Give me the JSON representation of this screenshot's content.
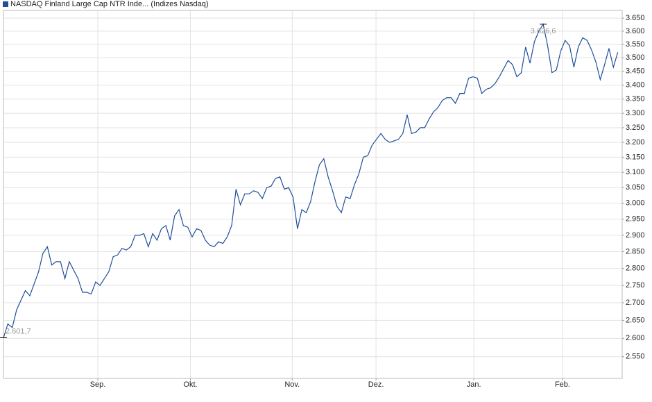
{
  "chart_data": {
    "type": "line",
    "log_scale": true,
    "grid": true,
    "series": [
      {
        "name": "NASDAQ Finland Large Cap NTR Inde... (Indizes Nasdaq)",
        "color": "#1f4e9a",
        "x": [
          0,
          1,
          2,
          3,
          5,
          6,
          8,
          9,
          10,
          11,
          12,
          13,
          14,
          15,
          17,
          18,
          19,
          20,
          21,
          22,
          23,
          24,
          25,
          26,
          27,
          28,
          29,
          30,
          31,
          32,
          33,
          34,
          35,
          36,
          37,
          38,
          39,
          40,
          41,
          42,
          43,
          44,
          45,
          46,
          47,
          48,
          49,
          50,
          51,
          52,
          53,
          54,
          55,
          56,
          57,
          58,
          59,
          60,
          61,
          62,
          63,
          64,
          65,
          66,
          67,
          68,
          69,
          70,
          71,
          72,
          73,
          74,
          75,
          76,
          77,
          78,
          79,
          80,
          81,
          82,
          83,
          84,
          85,
          86,
          87,
          88,
          89,
          90,
          91,
          92,
          93,
          94,
          95,
          96,
          97,
          98,
          99,
          100,
          101,
          102,
          103,
          104,
          105,
          106,
          107,
          108,
          109,
          110,
          111,
          112,
          113,
          114,
          115,
          116,
          117,
          118,
          119,
          120,
          121,
          122,
          123,
          124,
          125,
          126,
          127,
          128,
          129,
          130,
          131,
          132,
          133,
          134,
          135,
          136,
          137,
          138,
          139,
          140
        ],
        "values": [
          2601.7,
          2640,
          2630,
          2680,
          2735,
          2720,
          2790,
          2845,
          2865,
          2810,
          2820,
          2820,
          2770,
          2820,
          2770,
          2730,
          2730,
          2725,
          2760,
          2750,
          2770,
          2790,
          2835,
          2840,
          2860,
          2855,
          2865,
          2900,
          2900,
          2905,
          2865,
          2905,
          2885,
          2920,
          2930,
          2885,
          2960,
          2980,
          2930,
          2925,
          2895,
          2920,
          2915,
          2885,
          2870,
          2865,
          2880,
          2875,
          2895,
          2930,
          3045,
          2995,
          3030,
          3030,
          3040,
          3035,
          3015,
          3050,
          3055,
          3080,
          3085,
          3045,
          3050,
          3020,
          2920,
          2980,
          2970,
          3005,
          3070,
          3125,
          3145,
          3085,
          3040,
          2990,
          2970,
          3020,
          3015,
          3060,
          3095,
          3150,
          3155,
          3190,
          3210,
          3230,
          3210,
          3200,
          3205,
          3210,
          3230,
          3295,
          3230,
          3235,
          3250,
          3250,
          3280,
          3305,
          3320,
          3345,
          3355,
          3355,
          3335,
          3370,
          3370,
          3425,
          3430,
          3425,
          3370,
          3385,
          3390,
          3405,
          3430,
          3460,
          3490,
          3475,
          3430,
          3445,
          3540,
          3480,
          3560,
          3600,
          3626.6,
          3545,
          3445,
          3455,
          3525,
          3565,
          3545,
          3465,
          3540,
          3575,
          3565,
          3530,
          3485,
          3420,
          3475,
          3535,
          3465,
          3520
        ]
      }
    ],
    "annotations": [
      {
        "x": 123,
        "value": 3626.6,
        "label": "3.626,6"
      },
      {
        "x": 0,
        "value": 2601.7,
        "label": "2.601,7"
      }
    ],
    "xlim": [
      0,
      141
    ],
    "xticks": [
      {
        "value": 21.5,
        "label": "Sep."
      },
      {
        "value": 42.6,
        "label": "Okt."
      },
      {
        "value": 65.8,
        "label": "Nov."
      },
      {
        "value": 84.9,
        "label": "Dez."
      },
      {
        "value": 107.2,
        "label": "Jan."
      },
      {
        "value": 127.4,
        "label": "Feb."
      }
    ],
    "ylim": [
      2492,
      3680
    ],
    "yticks": [
      {
        "value": 2550,
        "label": "2.550"
      },
      {
        "value": 2600,
        "label": "2.600"
      },
      {
        "value": 2650,
        "label": "2.650"
      },
      {
        "value": 2700,
        "label": "2.700"
      },
      {
        "value": 2750,
        "label": "2.750"
      },
      {
        "value": 2800,
        "label": "2.800"
      },
      {
        "value": 2850,
        "label": "2.850"
      },
      {
        "value": 2900,
        "label": "2.900"
      },
      {
        "value": 2950,
        "label": "2.950"
      },
      {
        "value": 3000,
        "label": "3.000"
      },
      {
        "value": 3050,
        "label": "3.050"
      },
      {
        "value": 3100,
        "label": "3.100"
      },
      {
        "value": 3150,
        "label": "3.150"
      },
      {
        "value": 3200,
        "label": "3.200"
      },
      {
        "value": 3250,
        "label": "3.250"
      },
      {
        "value": 3300,
        "label": "3.300"
      },
      {
        "value": 3350,
        "label": "3.350"
      },
      {
        "value": 3400,
        "label": "3.400"
      },
      {
        "value": 3450,
        "label": "3.450"
      },
      {
        "value": 3500,
        "label": "3.500"
      },
      {
        "value": 3550,
        "label": "3.550"
      },
      {
        "value": 3600,
        "label": "3.600"
      },
      {
        "value": 3650,
        "label": "3.650"
      }
    ]
  }
}
